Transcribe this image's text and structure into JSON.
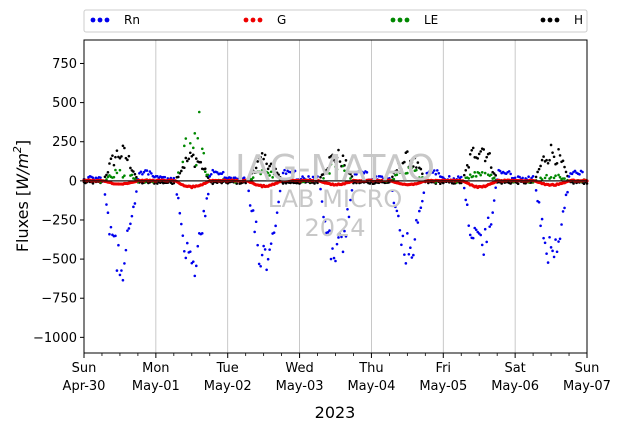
{
  "chart_data": {
    "type": "scatter",
    "title": "",
    "xlabel": "2023",
    "ylabel_prefix": "Fluxes [",
    "ylabel_symbol": "W/m",
    "ylabel_exp": "2",
    "ylabel_suffix": "]",
    "ylim": [
      -1100,
      900
    ],
    "yticks": [
      -1000,
      -750,
      -500,
      -250,
      0,
      250,
      500,
      750
    ],
    "xlim": [
      0,
      7
    ],
    "grid": "vertical",
    "legend_position": "top",
    "xticks": [
      {
        "day": "Sun",
        "date": "Apr-30"
      },
      {
        "day": "Mon",
        "date": "May-01"
      },
      {
        "day": "Tue",
        "date": "May-02"
      },
      {
        "day": "Wed",
        "date": "May-03"
      },
      {
        "day": "Thu",
        "date": "May-04"
      },
      {
        "day": "Fri",
        "date": "May-05"
      },
      {
        "day": "Sat",
        "date": "May-06"
      },
      {
        "day": "Sun",
        "date": "May-07"
      }
    ],
    "series": [
      {
        "name": "Rn",
        "color": "#0000ee",
        "daytime_extreme": [
          -640,
          -600,
          -590,
          -570,
          -540,
          -530,
          -540
        ],
        "night_level": 15
      },
      {
        "name": "G",
        "color": "#ee0000",
        "daytime_extreme": [
          -22,
          -40,
          -35,
          -25,
          -25,
          -40,
          -28
        ],
        "night_level": 2
      },
      {
        "name": "LE",
        "color": "#008800",
        "daytime_extreme": [
          110,
          440,
          100,
          150,
          120,
          100,
          60
        ],
        "night_level": 0
      },
      {
        "name": "H",
        "color": "#000000",
        "daytime_extreme": [
          240,
          200,
          180,
          210,
          190,
          295,
          250
        ],
        "night_level": -10
      }
    ]
  },
  "watermark": {
    "line1": "IAG-MATAO",
    "line2": "LAB MICRO",
    "line3": "2024"
  }
}
